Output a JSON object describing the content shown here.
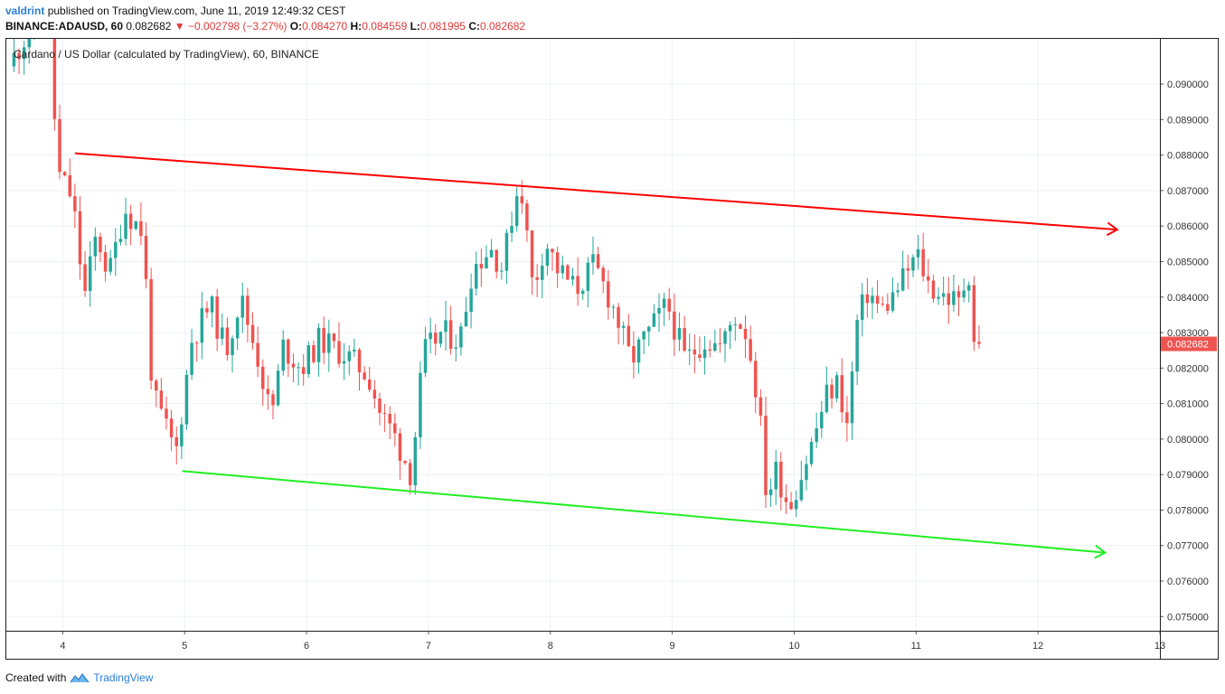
{
  "header": {
    "author": "valdrint",
    "published_text": "published on TradingView.com, June 11, 2019 12:49:32 CEST",
    "symbol": "BINANCE:ADAUSD, 60",
    "last": "0.082682",
    "arrow": "▼",
    "change": "−0.002798 (−3.27%)",
    "o_label": "O:",
    "o_value": "0.084270",
    "h_label": "H:",
    "h_value": "0.084559",
    "l_label": "L:",
    "l_value": "0.081995",
    "c_label": "C:",
    "c_value": "0.082682"
  },
  "legend_text": "Cardano / US Dollar (calculated by TradingView), 60, BINANCE",
  "footer": {
    "created_with": "Created with",
    "brand": "TradingView",
    "logo_icon": "tradingview-logo-icon"
  },
  "colors": {
    "up": "#26a69a",
    "down": "#ef5350",
    "resistance": "#ff0000",
    "support": "#22ee22",
    "price_tag": "#ef5350",
    "grid": "#eef1f4"
  },
  "chart_data": {
    "type": "candlestick",
    "title": "Cardano / US Dollar (calculated by TradingView), 60, BINANCE",
    "xlabel": "",
    "ylabel": "",
    "grid": true,
    "x_ticks": [
      "4",
      "5",
      "6",
      "7",
      "8",
      "9",
      "10",
      "11",
      "12",
      "13"
    ],
    "y_ticks": [
      "0.075000",
      "0.076000",
      "0.077000",
      "0.078000",
      "0.079000",
      "0.080000",
      "0.081000",
      "0.082000",
      "0.083000",
      "0.084000",
      "0.085000",
      "0.086000",
      "0.087000",
      "0.088000",
      "0.089000",
      "0.090000"
    ],
    "ylim": [
      0.0746,
      0.0913
    ],
    "xlim": [
      3.53,
      13.0
    ],
    "last_price_label": "0.082682",
    "last_price": 0.082682,
    "keypoints": [
      {
        "t": 3.6,
        "p": 0.0905
      },
      {
        "t": 3.92,
        "p": 0.0925
      },
      {
        "t": 4.0,
        "p": 0.0875
      },
      {
        "t": 4.12,
        "p": 0.0868
      },
      {
        "t": 4.22,
        "p": 0.084
      },
      {
        "t": 4.32,
        "p": 0.0858
      },
      {
        "t": 4.42,
        "p": 0.0846
      },
      {
        "t": 4.55,
        "p": 0.0865
      },
      {
        "t": 4.7,
        "p": 0.0858
      },
      {
        "t": 4.78,
        "p": 0.0812
      },
      {
        "t": 4.88,
        "p": 0.0804
      },
      {
        "t": 4.97,
        "p": 0.0796
      },
      {
        "t": 5.1,
        "p": 0.0828
      },
      {
        "t": 5.25,
        "p": 0.0838
      },
      {
        "t": 5.38,
        "p": 0.0825
      },
      {
        "t": 5.5,
        "p": 0.084
      },
      {
        "t": 5.65,
        "p": 0.0822
      },
      {
        "t": 5.75,
        "p": 0.0806
      },
      {
        "t": 5.85,
        "p": 0.0826
      },
      {
        "t": 6.0,
        "p": 0.082
      },
      {
        "t": 6.15,
        "p": 0.0828
      },
      {
        "t": 6.35,
        "p": 0.0824
      },
      {
        "t": 6.55,
        "p": 0.0818
      },
      {
        "t": 6.65,
        "p": 0.0807
      },
      {
        "t": 6.75,
        "p": 0.0802
      },
      {
        "t": 6.9,
        "p": 0.079
      },
      {
        "t": 7.0,
        "p": 0.0824
      },
      {
        "t": 7.15,
        "p": 0.083
      },
      {
        "t": 7.3,
        "p": 0.0828
      },
      {
        "t": 7.4,
        "p": 0.0848
      },
      {
        "t": 7.55,
        "p": 0.0854
      },
      {
        "t": 7.65,
        "p": 0.0848
      },
      {
        "t": 7.75,
        "p": 0.0868
      },
      {
        "t": 7.8,
        "p": 0.0872
      },
      {
        "t": 7.9,
        "p": 0.0842
      },
      {
        "t": 8.0,
        "p": 0.0856
      },
      {
        "t": 8.1,
        "p": 0.0848
      },
      {
        "t": 8.25,
        "p": 0.0842
      },
      {
        "t": 8.4,
        "p": 0.0849
      },
      {
        "t": 8.55,
        "p": 0.0838
      },
      {
        "t": 8.7,
        "p": 0.0822
      },
      {
        "t": 8.85,
        "p": 0.083
      },
      {
        "t": 9.0,
        "p": 0.0838
      },
      {
        "t": 9.15,
        "p": 0.0822
      },
      {
        "t": 9.3,
        "p": 0.0828
      },
      {
        "t": 9.45,
        "p": 0.0826
      },
      {
        "t": 9.55,
        "p": 0.0835
      },
      {
        "t": 9.65,
        "p": 0.083
      },
      {
        "t": 9.75,
        "p": 0.081
      },
      {
        "t": 9.82,
        "p": 0.0782
      },
      {
        "t": 9.88,
        "p": 0.0792
      },
      {
        "t": 9.95,
        "p": 0.0786
      },
      {
        "t": 10.0,
        "p": 0.0781
      },
      {
        "t": 10.1,
        "p": 0.079
      },
      {
        "t": 10.2,
        "p": 0.08
      },
      {
        "t": 10.3,
        "p": 0.0812
      },
      {
        "t": 10.4,
        "p": 0.0816
      },
      {
        "t": 10.48,
        "p": 0.0803
      },
      {
        "t": 10.55,
        "p": 0.0832
      },
      {
        "t": 10.65,
        "p": 0.0842
      },
      {
        "t": 10.75,
        "p": 0.0836
      },
      {
        "t": 10.85,
        "p": 0.084
      },
      {
        "t": 10.95,
        "p": 0.0846
      },
      {
        "t": 11.05,
        "p": 0.0852
      },
      {
        "t": 11.15,
        "p": 0.0843
      },
      {
        "t": 11.3,
        "p": 0.084
      },
      {
        "t": 11.4,
        "p": 0.0838
      },
      {
        "t": 11.47,
        "p": 0.0849
      },
      {
        "t": 11.52,
        "p": 0.0827
      }
    ],
    "trendlines": [
      {
        "name": "resistance",
        "color": "#ff0000",
        "from": {
          "t": 4.1,
          "p": 0.08805
        },
        "to": {
          "t": 12.65,
          "p": 0.0859
        }
      },
      {
        "name": "support",
        "color": "#22ee22",
        "from": {
          "t": 4.98,
          "p": 0.0791
        },
        "to": {
          "t": 12.55,
          "p": 0.0768
        }
      }
    ]
  }
}
